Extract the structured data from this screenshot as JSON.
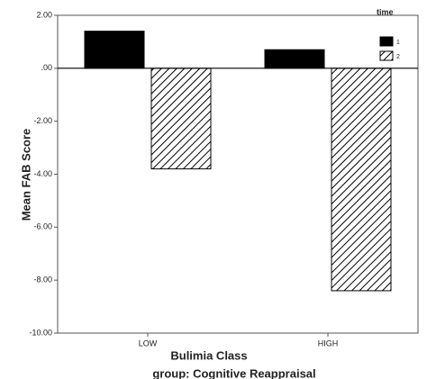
{
  "chart_data": {
    "type": "bar",
    "x_label": "Bulimia Class",
    "y_label": "Mean FAB Score",
    "footer": "group: Cognitive Reappraisal",
    "legend_title": "time",
    "legend_position": "upper right",
    "categories": [
      "LOW",
      "HIGH"
    ],
    "series": [
      {
        "name": "1",
        "color": "#000000",
        "pattern": "solid",
        "values": [
          1.4,
          0.7
        ]
      },
      {
        "name": "2",
        "color": "#000000",
        "pattern": "hatch",
        "values": [
          -3.8,
          -8.4
        ]
      }
    ],
    "ylim": [
      -10,
      2
    ],
    "yticks": [
      {
        "value": 2,
        "label": "2.00"
      },
      {
        "value": 0,
        "label": ".00"
      },
      {
        "value": -2,
        "label": "-2.00"
      },
      {
        "value": -4,
        "label": "-4.00"
      },
      {
        "value": -6,
        "label": "-6.00"
      },
      {
        "value": -8,
        "label": "-8.00"
      },
      {
        "value": -10,
        "label": "-10.00"
      }
    ],
    "zero_line": true,
    "grid": false
  }
}
